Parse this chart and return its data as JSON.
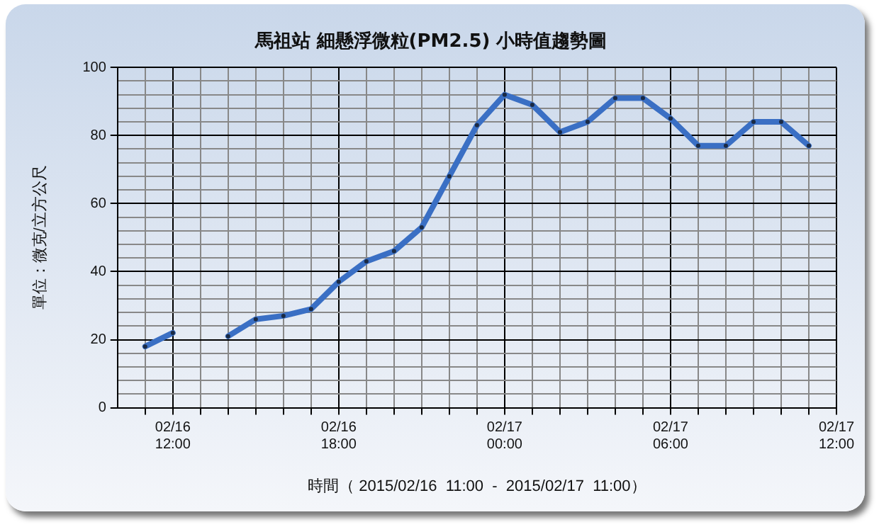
{
  "chart_data": {
    "type": "line",
    "title": "馬祖站 細懸浮微粒(PM2.5) 小時值趨勢圖",
    "xlabel": "時間（ 2015/02/16  11:00  -  2015/02/17  11:00）",
    "ylabel": "單位：微克/立方公尺",
    "x": [
      "2015-02-16T11:00",
      "2015-02-16T12:00",
      "2015-02-16T13:00",
      "2015-02-16T14:00",
      "2015-02-16T15:00",
      "2015-02-16T16:00",
      "2015-02-16T17:00",
      "2015-02-16T18:00",
      "2015-02-16T19:00",
      "2015-02-16T20:00",
      "2015-02-16T21:00",
      "2015-02-16T22:00",
      "2015-02-16T23:00",
      "2015-02-17T00:00",
      "2015-02-17T01:00",
      "2015-02-17T02:00",
      "2015-02-17T03:00",
      "2015-02-17T04:00",
      "2015-02-17T05:00",
      "2015-02-17T06:00",
      "2015-02-17T07:00",
      "2015-02-17T08:00",
      "2015-02-17T09:00",
      "2015-02-17T10:00",
      "2015-02-17T11:00"
    ],
    "series": [
      {
        "color": "#3a6fc4",
        "values": [
          18,
          22,
          null,
          21,
          26,
          27,
          29,
          37,
          43,
          46,
          53,
          68,
          83,
          92,
          89,
          81,
          84,
          91,
          91,
          85,
          77,
          77,
          84,
          84,
          77
        ]
      }
    ],
    "xlim": [
      "2015-02-16T10:00",
      "2015-02-17T12:00"
    ],
    "xticks": [
      {
        "value": "2015-02-16T11:00",
        "label": null
      },
      {
        "value": "2015-02-16T12:00",
        "label": "02/16\n12:00"
      },
      {
        "value": "2015-02-16T13:00",
        "label": null
      },
      {
        "value": "2015-02-16T14:00",
        "label": null
      },
      {
        "value": "2015-02-16T15:00",
        "label": null
      },
      {
        "value": "2015-02-16T16:00",
        "label": null
      },
      {
        "value": "2015-02-16T17:00",
        "label": null
      },
      {
        "value": "2015-02-16T18:00",
        "label": "02/16\n18:00"
      },
      {
        "value": "2015-02-16T19:00",
        "label": null
      },
      {
        "value": "2015-02-16T20:00",
        "label": null
      },
      {
        "value": "2015-02-16T21:00",
        "label": null
      },
      {
        "value": "2015-02-16T22:00",
        "label": null
      },
      {
        "value": "2015-02-16T23:00",
        "label": null
      },
      {
        "value": "2015-02-17T00:00",
        "label": "02/17\n00:00"
      },
      {
        "value": "2015-02-17T01:00",
        "label": null
      },
      {
        "value": "2015-02-17T02:00",
        "label": null
      },
      {
        "value": "2015-02-17T03:00",
        "label": null
      },
      {
        "value": "2015-02-17T04:00",
        "label": null
      },
      {
        "value": "2015-02-17T05:00",
        "label": null
      },
      {
        "value": "2015-02-17T06:00",
        "label": "02/17\n06:00"
      },
      {
        "value": "2015-02-17T07:00",
        "label": null
      },
      {
        "value": "2015-02-17T08:00",
        "label": null
      },
      {
        "value": "2015-02-17T09:00",
        "label": null
      },
      {
        "value": "2015-02-17T10:00",
        "label": null
      },
      {
        "value": "2015-02-17T11:00",
        "label": null
      },
      {
        "value": "2015-02-17T12:00",
        "label": "02/17\n12:00"
      }
    ],
    "ylim": [
      0,
      100
    ],
    "yticks": [
      0,
      {
        "value": 4,
        "label": null
      },
      {
        "value": 8,
        "label": null
      },
      {
        "value": 12,
        "label": null
      },
      {
        "value": 16,
        "label": null
      },
      20,
      {
        "value": 24,
        "label": null
      },
      {
        "value": 28,
        "label": null
      },
      {
        "value": 32,
        "label": null
      },
      {
        "value": 36,
        "label": null
      },
      40,
      {
        "value": 44,
        "label": null
      },
      {
        "value": 48,
        "label": null
      },
      {
        "value": 52,
        "label": null
      },
      {
        "value": 56,
        "label": null
      },
      60,
      {
        "value": 64,
        "label": null
      },
      {
        "value": 68,
        "label": null
      },
      {
        "value": 72,
        "label": null
      },
      {
        "value": 76,
        "label": null
      },
      80,
      {
        "value": 84,
        "label": null
      },
      {
        "value": 88,
        "label": null
      },
      {
        "value": 92,
        "label": null
      },
      {
        "value": 96,
        "label": null
      },
      100
    ],
    "grid": true,
    "marker": "circle",
    "line_style": "solid",
    "legend": false
  }
}
